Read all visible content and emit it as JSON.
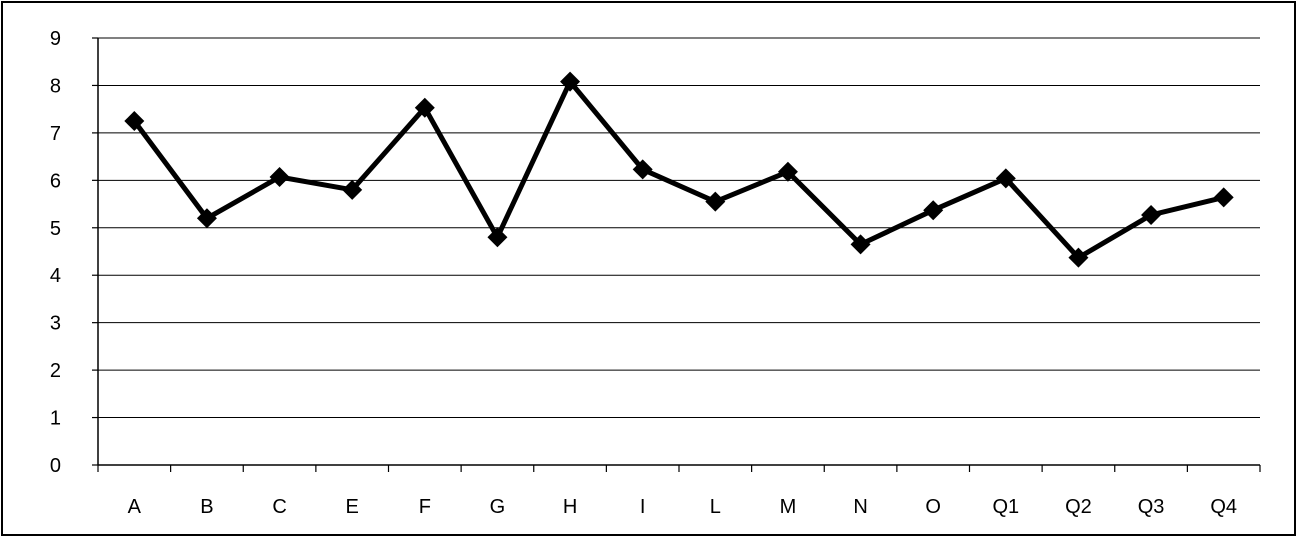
{
  "chart_data": {
    "type": "line",
    "title": "",
    "xlabel": "",
    "ylabel": "",
    "categories": [
      "A",
      "B",
      "C",
      "E",
      "F",
      "G",
      "H",
      "I",
      "L",
      "M",
      "N",
      "O",
      "Q1",
      "Q2",
      "Q3",
      "Q4"
    ],
    "series": [
      {
        "values": [
          7.25,
          5.2,
          6.07,
          5.8,
          7.53,
          4.8,
          8.08,
          6.23,
          5.55,
          6.18,
          4.65,
          5.37,
          6.04,
          4.37,
          5.27,
          5.64
        ],
        "color": "#000000",
        "marker": "diamond"
      }
    ],
    "ylim": [
      0,
      9
    ],
    "yticks": [
      0,
      1,
      2,
      3,
      4,
      5,
      6,
      7,
      8,
      9
    ],
    "grid": true,
    "legend": "none"
  }
}
